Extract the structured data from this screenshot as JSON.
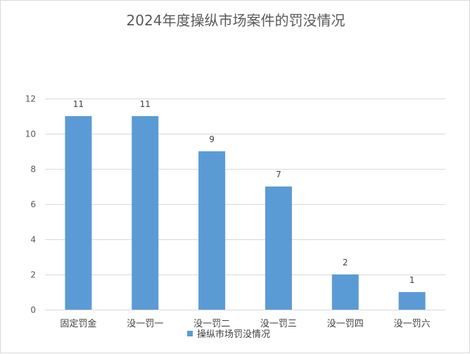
{
  "chart_data": {
    "type": "bar",
    "title": "2024年度操纵市场案件的罚没情况",
    "xlabel": "",
    "ylabel": "",
    "categories": [
      "固定罚金",
      "没一罚一",
      "没一罚二",
      "没一罚三",
      "没一罚四",
      "没一罚六"
    ],
    "series": [
      {
        "name": "操纵市场罚没情况",
        "values": [
          11,
          11,
          9,
          7,
          2,
          1
        ],
        "color": "#5b9bd5"
      }
    ],
    "ylim": [
      0,
      12
    ],
    "yticks": [
      0,
      2,
      4,
      6,
      8,
      10,
      12
    ],
    "grid": true,
    "data_labels": true,
    "legend_position": "bottom"
  }
}
